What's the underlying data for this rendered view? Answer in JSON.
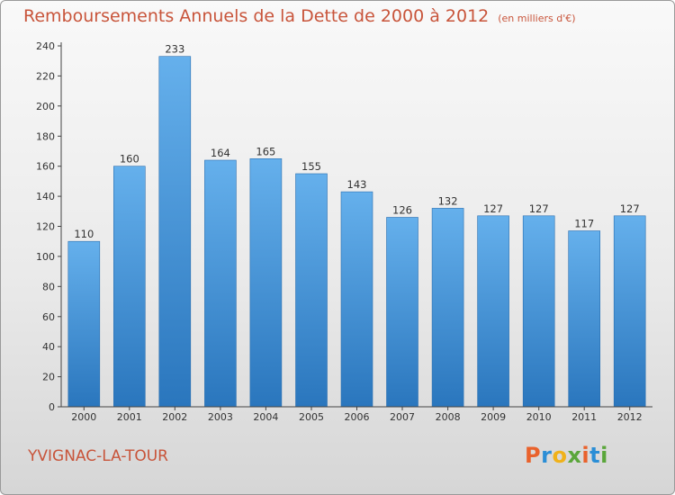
{
  "chart_data": {
    "type": "bar",
    "title": "Remboursements Annuels de la Dette de 2000 à 2012",
    "subtitle": "(en milliers d'€)",
    "categories": [
      "2000",
      "2001",
      "2002",
      "2003",
      "2004",
      "2005",
      "2006",
      "2007",
      "2008",
      "2009",
      "2010",
      "2011",
      "2012"
    ],
    "values": [
      110,
      160,
      233,
      164,
      165,
      155,
      143,
      126,
      132,
      127,
      127,
      117,
      127
    ],
    "ylim": [
      0,
      240
    ],
    "yticks": [
      0,
      20,
      40,
      60,
      80,
      100,
      120,
      140,
      160,
      180,
      200,
      220,
      240
    ],
    "grid": false,
    "bar_color": "#3e8fd4"
  },
  "footer": {
    "location": "YVIGNAC-LA-TOUR",
    "logo_text": "Proxiti",
    "logo_colors": [
      "#e9622c",
      "#2b8ed6",
      "#f0b21a",
      "#5aa63a",
      "#e9622c",
      "#2b8ed6",
      "#5aa63a"
    ]
  }
}
